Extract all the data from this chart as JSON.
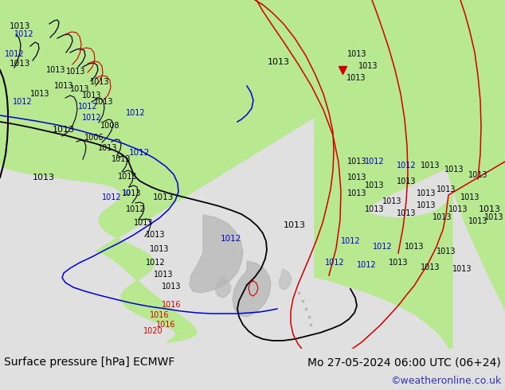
{
  "title_left": "Surface pressure [hPa] ECMWF",
  "title_right": "Mo 27-05-2024 06:00 UTC (06+24)",
  "copyright": "©weatheronline.co.uk",
  "bg_color": "#e0e0e0",
  "ocean_color": "#dcdcdc",
  "land_color": "#b8e890",
  "land_color2": "#c0c0c0",
  "footer_bg": "#d0d0d0",
  "title_fontsize": 10,
  "copyright_color": "#3333bb",
  "copyright_fontsize": 9,
  "black_lw": 1.3,
  "blue_lw": 1.1,
  "red_lw": 1.1
}
